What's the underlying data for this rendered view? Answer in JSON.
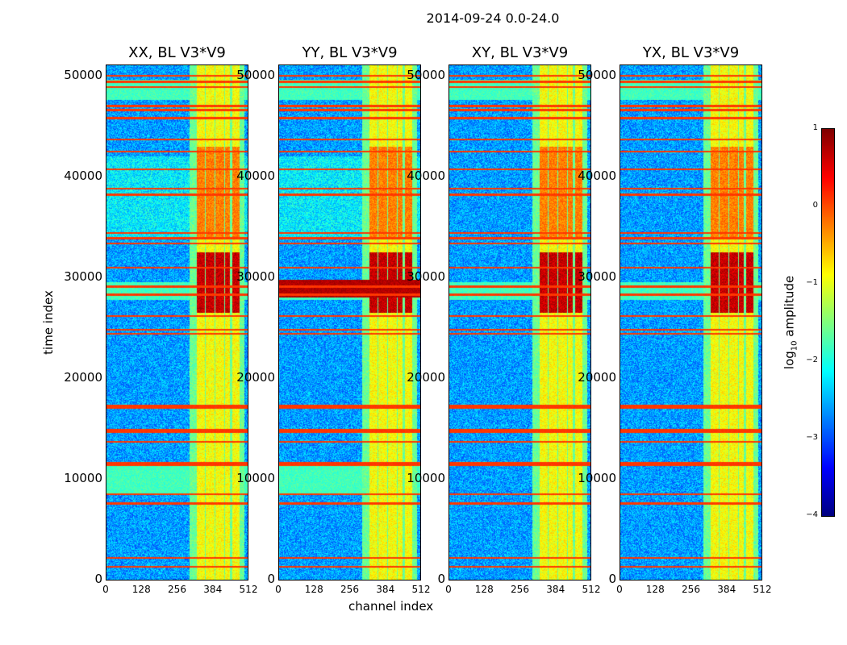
{
  "chart_data": {
    "type": "heatmap",
    "title": "2014-09-24 0.0-24.0",
    "xlabel": "channel index",
    "ylabel": "time index",
    "xlim": [
      0,
      512
    ],
    "ylim": [
      0,
      51000
    ],
    "xticks": [
      0,
      128,
      256,
      384,
      512
    ],
    "yticks": [
      0,
      10000,
      20000,
      30000,
      40000,
      50000
    ],
    "panels": [
      {
        "title": "XX, BL V3*V9",
        "cross": false
      },
      {
        "title": "YY, BL V3*V9",
        "cross": false
      },
      {
        "title": "XY, BL V3*V9",
        "cross": true
      },
      {
        "title": "YX, BL V3*V9",
        "cross": true
      }
    ],
    "colorbar": {
      "label_prefix": "log",
      "label_sub": "10",
      "label_suffix": " amplitude",
      "vmin": -4,
      "vmax": 1,
      "ticks": [
        "1",
        "0",
        "−1",
        "−2",
        "−3",
        "−4"
      ],
      "colormap": "jet"
    },
    "rfi_channel_ranges": [
      [
        325,
        355
      ],
      [
        358,
        390
      ],
      [
        393,
        425
      ],
      [
        428,
        445
      ],
      [
        455,
        480
      ]
    ],
    "rfi_time_lines": [
      50000,
      49400,
      48900,
      47000,
      46600,
      45800,
      43700,
      42500,
      40700,
      38800,
      38200,
      34400,
      33900,
      33400,
      31000,
      29100,
      28300,
      26200,
      24800,
      24400,
      17300,
      17100,
      14900,
      14700,
      13700,
      11600,
      11400,
      8500,
      7600,
      2200,
      1300
    ],
    "bright_time_range": [
      26500,
      32500
    ],
    "baseline_log_amplitude": -2.6
  }
}
